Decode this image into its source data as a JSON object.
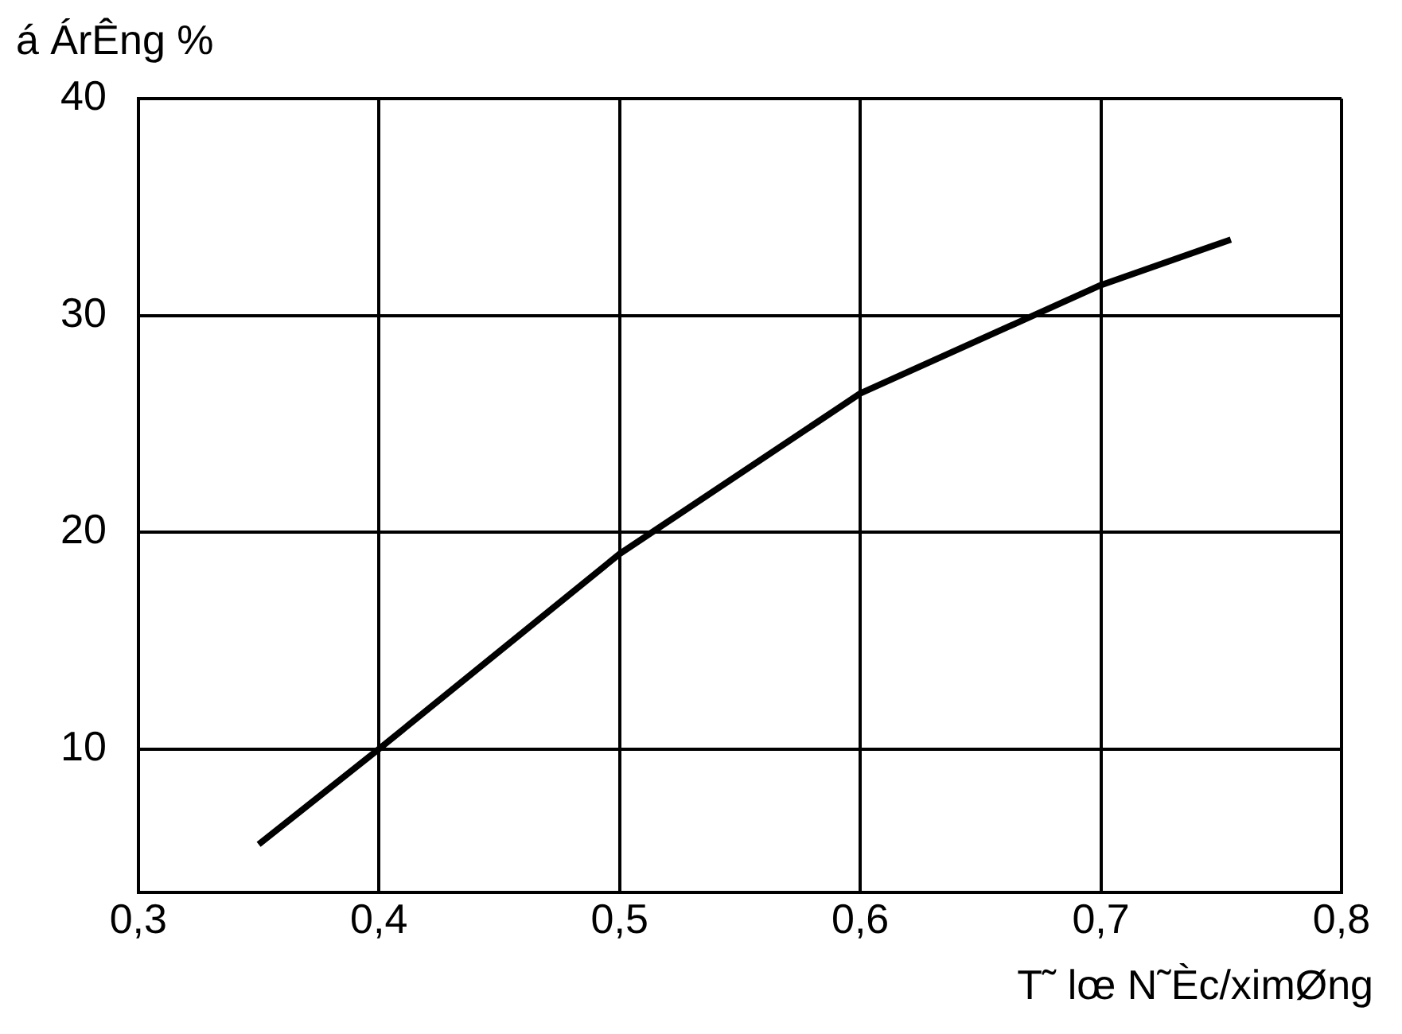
{
  "chart_data": {
    "type": "line",
    "xlabel": "T˜ lœ N˜Èc/ximØng",
    "ylabel": "á ÁrÊng %",
    "series": [
      {
        "color": "#000000",
        "x": [
          0.35,
          0.4,
          0.5,
          0.6,
          0.7,
          0.754
        ],
        "values": [
          5.6,
          10,
          19,
          26.4,
          31.4,
          33.5
        ]
      }
    ],
    "xlim": [
      0.3,
      0.8
    ],
    "xticks": [
      {
        "value": 0.3,
        "label": "0,3"
      },
      {
        "value": 0.4,
        "label": "0,4"
      },
      {
        "value": 0.5,
        "label": "0,5"
      },
      {
        "value": 0.6,
        "label": "0,6"
      },
      {
        "value": 0.7,
        "label": "0,7"
      },
      {
        "value": 0.8,
        "label": "0,8"
      }
    ],
    "ylim": [
      3.4,
      40
    ],
    "yticks": [
      10,
      20,
      30,
      40
    ],
    "grid": true,
    "legend": false,
    "marker": "none",
    "line_style": "solid"
  }
}
